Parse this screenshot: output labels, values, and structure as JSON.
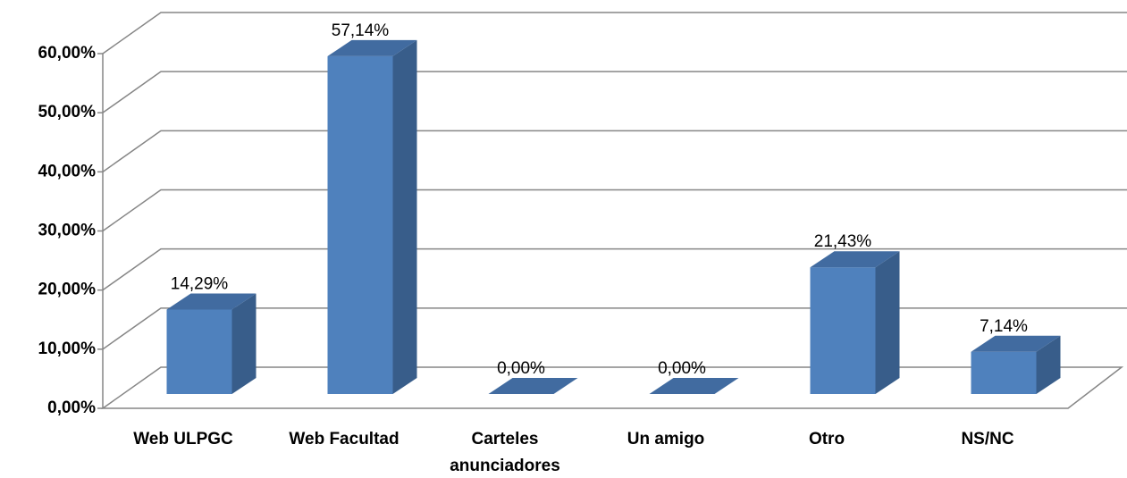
{
  "chart_data": {
    "type": "bar3d",
    "categories": [
      "Web ULPGC",
      "Web Facultad",
      "Carteles anunciadores",
      "Un amigo",
      "Otro",
      "NS/NC"
    ],
    "values": [
      14.29,
      57.14,
      0,
      0,
      21.43,
      7.14
    ],
    "value_labels": [
      "14,29%",
      "57,14%",
      "0,00%",
      "0,00%",
      "21,43%",
      "7,14%"
    ],
    "color": "#4f81bd",
    "ylim": [
      0,
      60
    ],
    "yticks": [
      {
        "value": 0,
        "label": "0,00%"
      },
      {
        "value": 10,
        "label": "10,00%"
      },
      {
        "value": 20,
        "label": "20,00%"
      },
      {
        "value": 30,
        "label": "30,00%"
      },
      {
        "value": 40,
        "label": "40,00%"
      },
      {
        "value": 50,
        "label": "50,00%"
      },
      {
        "value": 60,
        "label": "60,00%"
      }
    ],
    "grid": true
  }
}
